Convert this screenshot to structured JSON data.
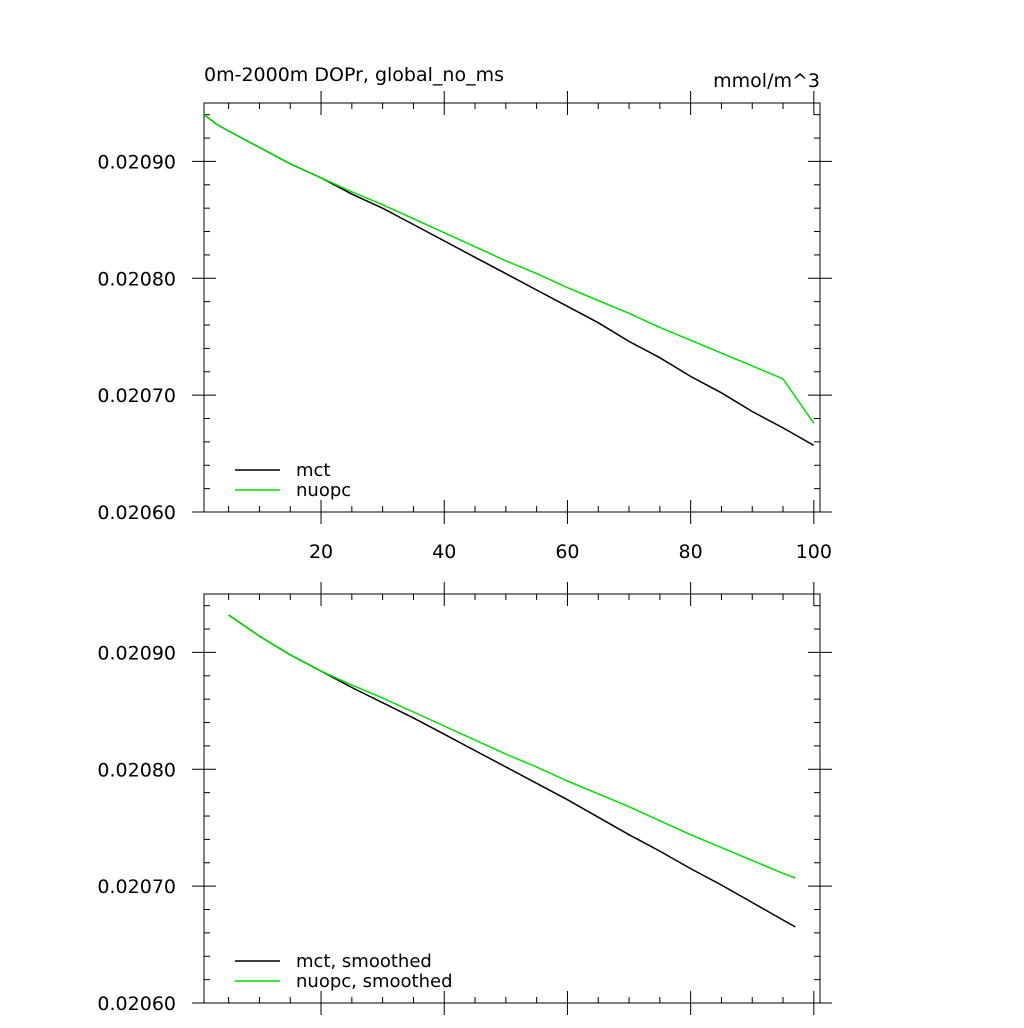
{
  "chart_data": [
    {
      "type": "line",
      "title": "0m-2000m DOPr, global_no_ms",
      "units": "mmol/m^3",
      "xlabel": "",
      "ylabel": "",
      "xlim": [
        1,
        101
      ],
      "ylim": [
        0.0206,
        0.02095
      ],
      "xticks": [
        20,
        40,
        60,
        80,
        100
      ],
      "yticks": [
        0.0206,
        0.0207,
        0.0208,
        0.0209
      ],
      "ytick_labels": [
        "0.02060",
        "0.02070",
        "0.02080",
        "0.02090"
      ],
      "xtick_labels": [
        "20",
        "40",
        "60",
        "80",
        "100"
      ],
      "legend": {
        "placement": "bottom-left"
      },
      "series": [
        {
          "name": "mct",
          "color": "#000000",
          "x": [
            1,
            3,
            5,
            10,
            15,
            20,
            25,
            30,
            35,
            40,
            45,
            50,
            55,
            60,
            65,
            70,
            75,
            80,
            85,
            90,
            95,
            100
          ],
          "values": [
            0.02094,
            0.020932,
            0.020926,
            0.020912,
            0.020898,
            0.020886,
            0.020872,
            0.02086,
            0.020846,
            0.020832,
            0.020818,
            0.020804,
            0.02079,
            0.020776,
            0.020762,
            0.020746,
            0.020732,
            0.020716,
            0.020702,
            0.020686,
            0.020672,
            0.020657
          ]
        },
        {
          "name": "nuopc",
          "color": "#00dd00",
          "x": [
            1,
            3,
            5,
            10,
            15,
            20,
            25,
            30,
            35,
            40,
            45,
            50,
            55,
            60,
            65,
            70,
            75,
            80,
            85,
            90,
            95,
            100
          ],
          "values": [
            0.02094,
            0.020932,
            0.020926,
            0.020912,
            0.020898,
            0.020886,
            0.020874,
            0.020863,
            0.020851,
            0.020839,
            0.020827,
            0.020815,
            0.020804,
            0.020792,
            0.020781,
            0.02077,
            0.020758,
            0.020747,
            0.020736,
            0.020725,
            0.020714,
            0.020676
          ]
        }
      ]
    },
    {
      "type": "line",
      "title": "",
      "xlabel": "",
      "ylabel": "",
      "xlim": [
        1,
        101
      ],
      "ylim": [
        0.0206,
        0.02095
      ],
      "xticks": [
        20,
        40,
        60,
        80,
        100
      ],
      "yticks": [
        0.0206,
        0.0207,
        0.0208,
        0.0209
      ],
      "ytick_labels": [
        "0.02060",
        "0.02070",
        "0.02080",
        "0.02090"
      ],
      "legend": {
        "placement": "bottom-left"
      },
      "series": [
        {
          "name": "mct, smoothed",
          "color": "#000000",
          "x": [
            5,
            10,
            15,
            20,
            25,
            30,
            35,
            40,
            45,
            50,
            55,
            60,
            65,
            70,
            75,
            80,
            85,
            90,
            95,
            97
          ],
          "values": [
            0.020932,
            0.020914,
            0.020898,
            0.020884,
            0.02087,
            0.020857,
            0.020844,
            0.02083,
            0.020816,
            0.020802,
            0.020788,
            0.020774,
            0.020759,
            0.020744,
            0.02073,
            0.020715,
            0.020701,
            0.020686,
            0.020671,
            0.020665
          ]
        },
        {
          "name": "nuopc, smoothed",
          "color": "#00dd00",
          "x": [
            5,
            10,
            15,
            20,
            25,
            30,
            35,
            40,
            45,
            50,
            55,
            60,
            65,
            70,
            75,
            80,
            85,
            90,
            95,
            97
          ],
          "values": [
            0.020932,
            0.020914,
            0.020898,
            0.020884,
            0.020872,
            0.020861,
            0.020849,
            0.020837,
            0.020825,
            0.020813,
            0.020802,
            0.02079,
            0.020779,
            0.020768,
            0.020756,
            0.020744,
            0.020733,
            0.020722,
            0.020711,
            0.020707
          ]
        }
      ]
    }
  ]
}
